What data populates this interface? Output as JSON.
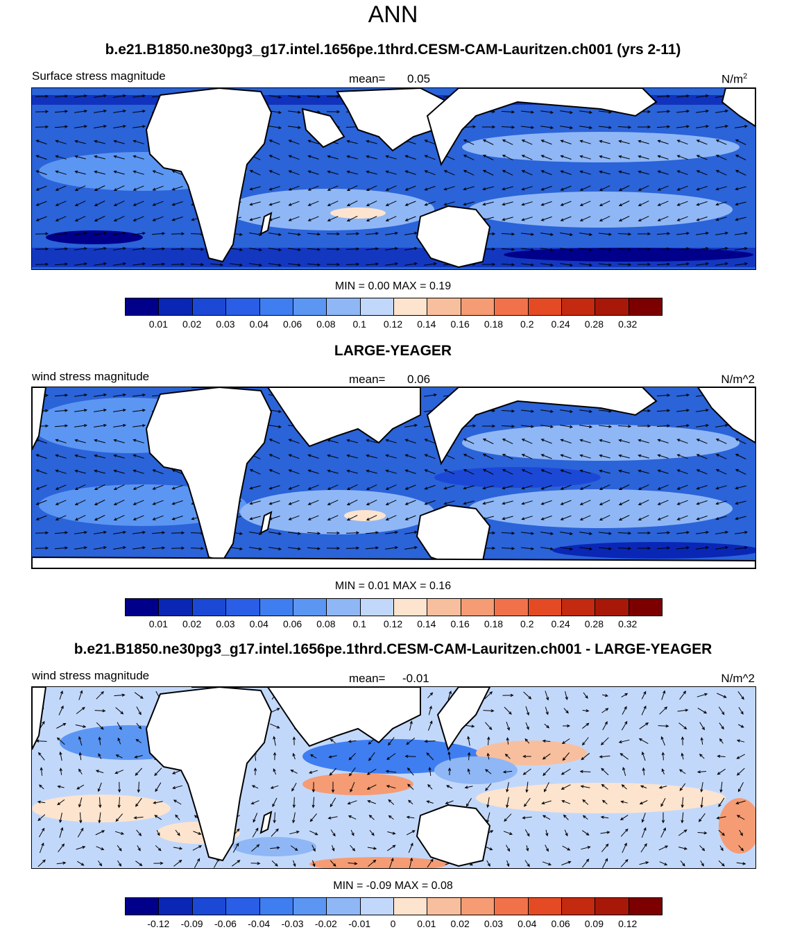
{
  "title": "ANN",
  "palette": [
    "#00008b",
    "#0a26b5",
    "#1c48d6",
    "#2a5ee6",
    "#3f7ef1",
    "#5c96f3",
    "#8fb7f6",
    "#c2d8fb",
    "#fde4cf",
    "#f8bf9e",
    "#f59c74",
    "#f1724a",
    "#e44b25",
    "#c42a10",
    "#a81808",
    "#7c0000"
  ],
  "panels": [
    {
      "heading": "b.e21.B1850.ne30pg3_g17.intel.1656pe.1thrd.CESM-CAM-Lauritzen.ch001 (yrs 2-11)",
      "left_label": "Surface stress magnitude",
      "mean_label": "mean=",
      "mean_value": "0.05",
      "units": "N/m",
      "units_sup": "2",
      "minmax": "MIN =   0.00 MAX =   0.19",
      "ticks": [
        "0.01",
        "0.02",
        "0.03",
        "0.04",
        "0.06",
        "0.08",
        "0.1",
        "0.12",
        "0.14",
        "0.16",
        "0.18",
        "0.2",
        "0.24",
        "0.28",
        "0.32"
      ]
    },
    {
      "heading": "LARGE-YEAGER",
      "left_label": "wind stress magnitude",
      "mean_label": "mean=",
      "mean_value": "0.06",
      "units": "N/m^2",
      "minmax": "MIN =   0.01 MAX =   0.16",
      "ticks": [
        "0.01",
        "0.02",
        "0.03",
        "0.04",
        "0.06",
        "0.08",
        "0.1",
        "0.12",
        "0.14",
        "0.16",
        "0.18",
        "0.2",
        "0.24",
        "0.28",
        "0.32"
      ]
    },
    {
      "heading": "b.e21.B1850.ne30pg3_g17.intel.1656pe.1thrd.CESM-CAM-Lauritzen.ch001 - LARGE-YEAGER",
      "left_label": "wind stress magnitude",
      "mean_label": "mean=",
      "mean_value": "-0.01",
      "units": "N/m^2",
      "minmax": "MIN =  -0.09 MAX =   0.08",
      "ticks": [
        "-0.12",
        "-0.09",
        "-0.06",
        "-0.04",
        "-0.03",
        "-0.02",
        "-0.01",
        "0",
        "0.01",
        "0.02",
        "0.03",
        "0.04",
        "0.06",
        "0.09",
        "0.12"
      ]
    }
  ]
}
